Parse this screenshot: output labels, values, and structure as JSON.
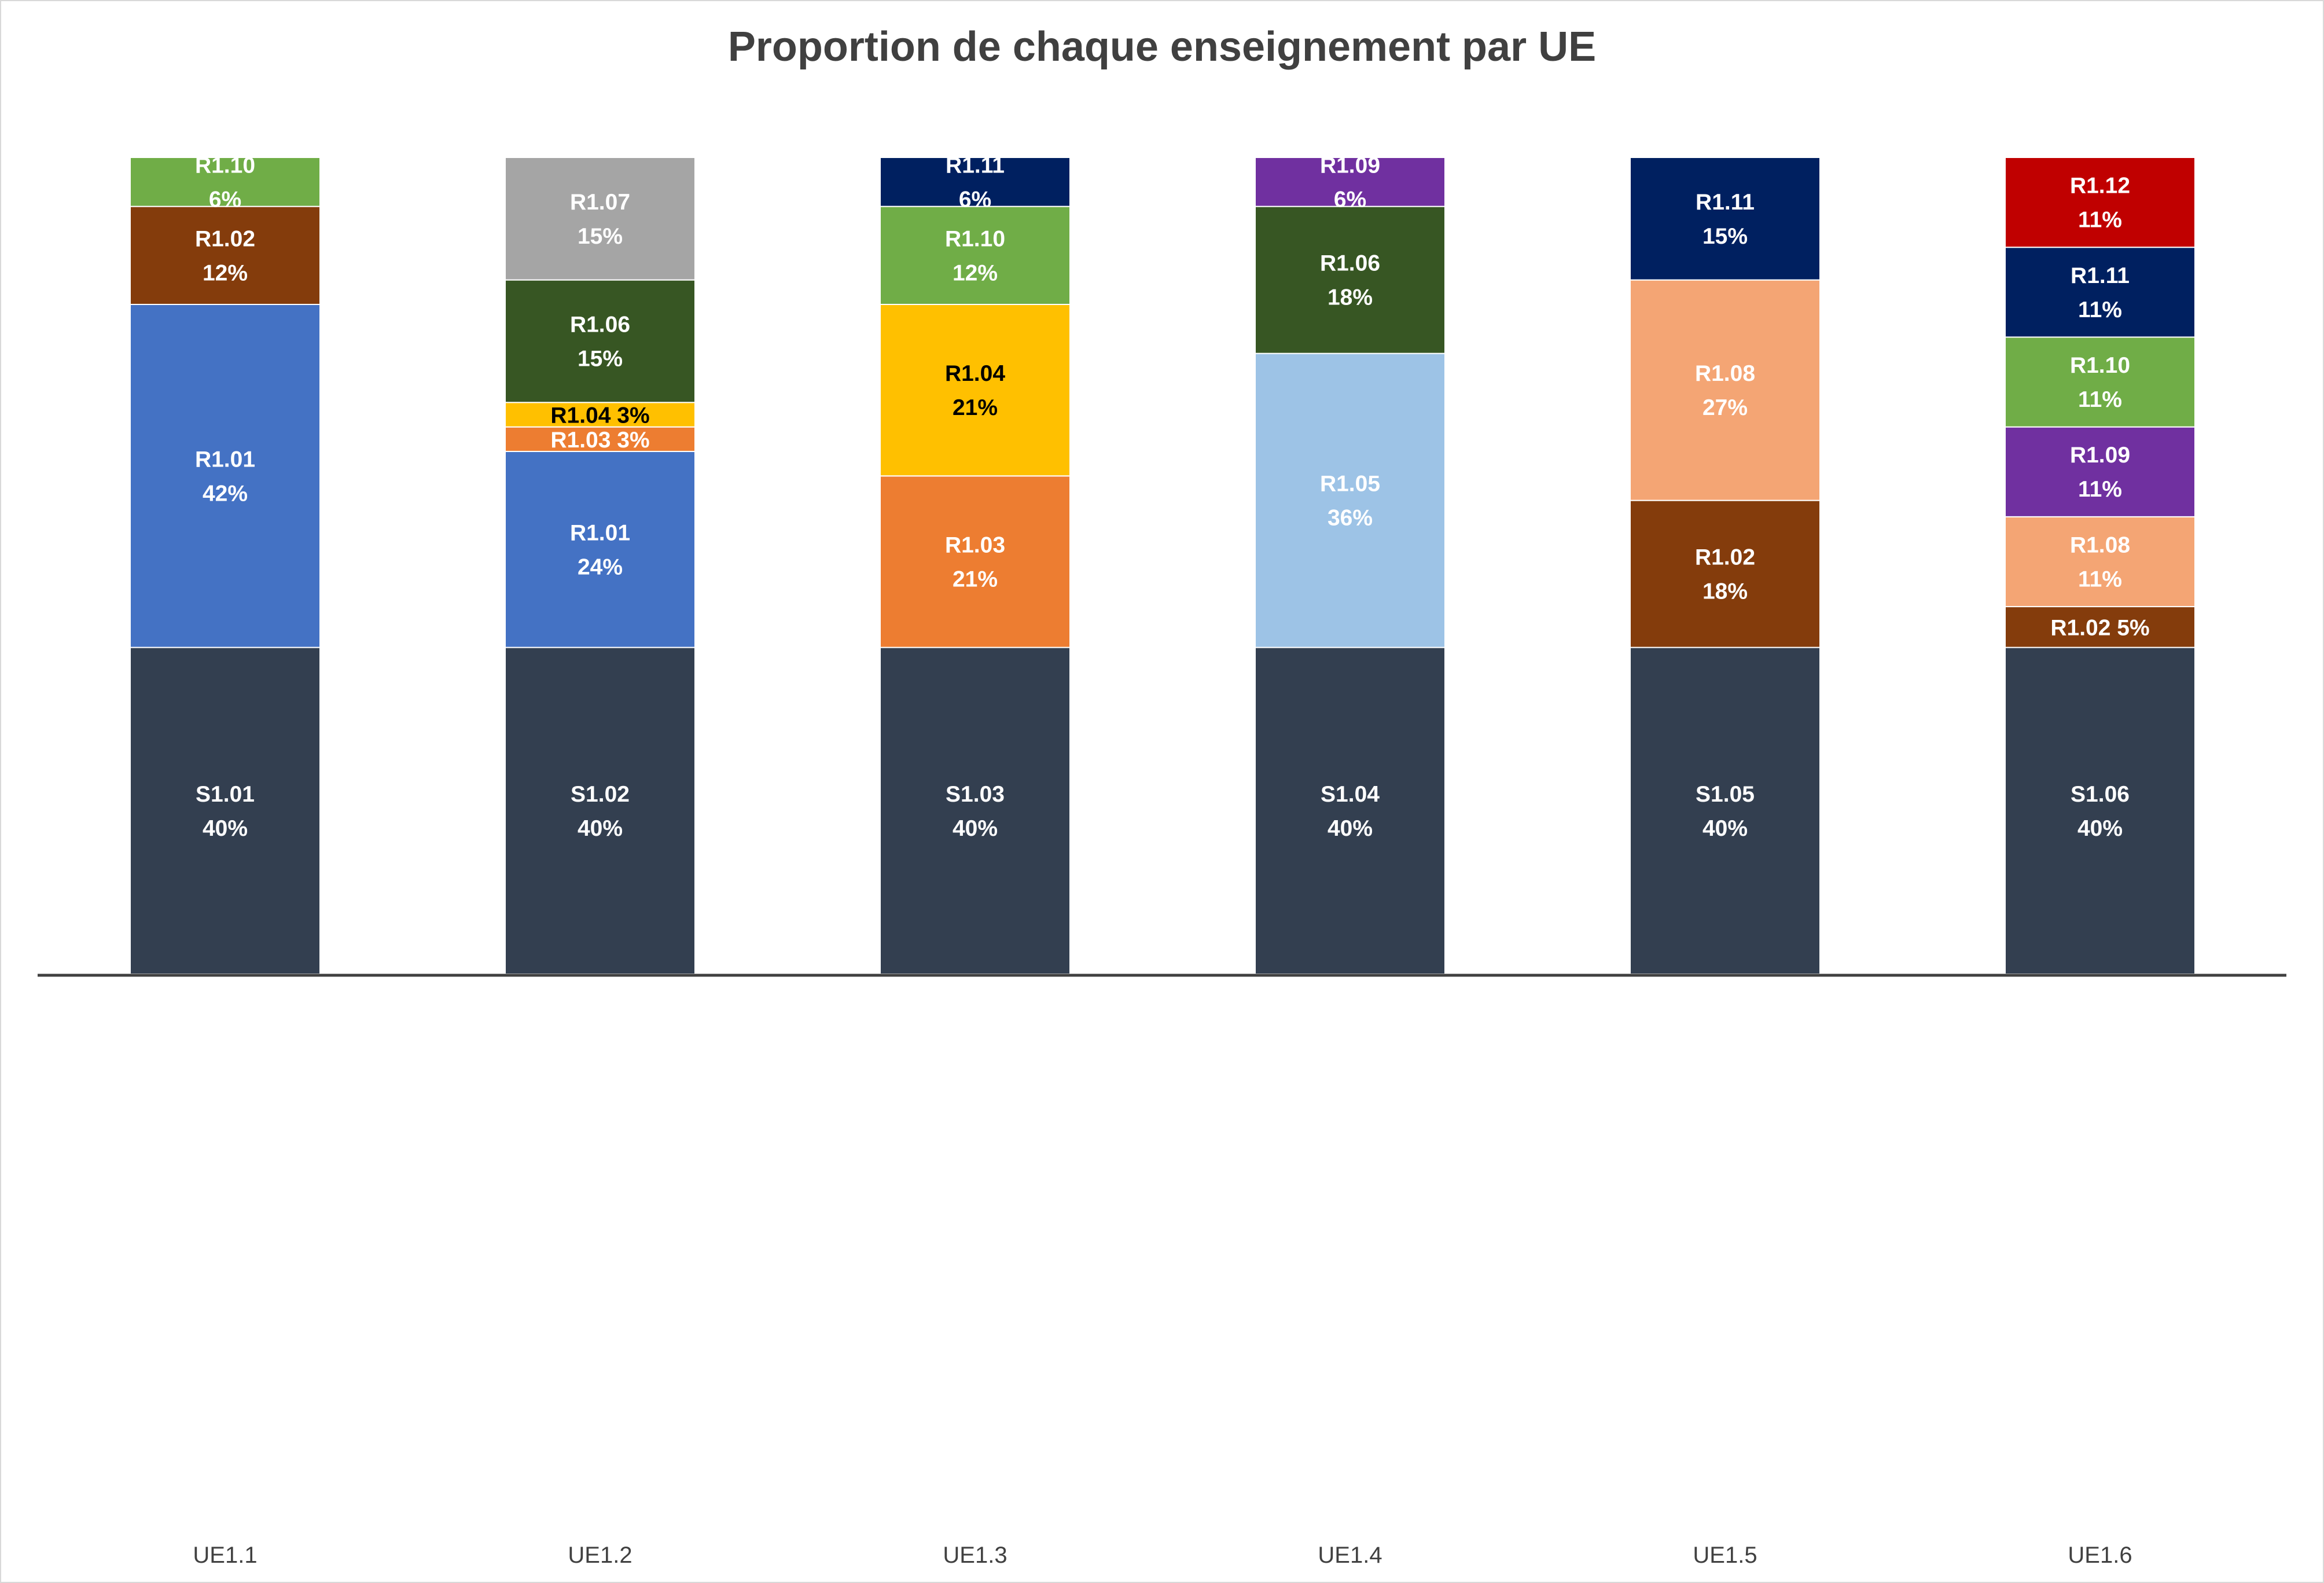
{
  "chart_data": {
    "type": "bar",
    "stacked": true,
    "percent": true,
    "title": "Proportion de chaque enseignement par UE",
    "xlabel": "",
    "ylabel": "",
    "ylim": [
      0,
      100
    ],
    "grid": false,
    "legend": "none",
    "categories": [
      "UE1.1",
      "UE1.2",
      "UE1.3",
      "UE1.4",
      "UE1.5",
      "UE1.6"
    ],
    "stacks": [
      {
        "category": "UE1.1",
        "segments": [
          {
            "name": "S1.01",
            "value": 40,
            "label": "40%",
            "color": "#333F50",
            "text_color": "#FFFFFF"
          },
          {
            "name": "R1.01",
            "value": 42,
            "label": "42%",
            "color": "#4472C4",
            "text_color": "#FFFFFF"
          },
          {
            "name": "R1.02",
            "value": 12,
            "label": "12%",
            "color": "#843C0C",
            "text_color": "#FFFFFF"
          },
          {
            "name": "R1.10",
            "value": 6,
            "label": "6%",
            "color": "#70AD47",
            "text_color": "#FFFFFF"
          }
        ]
      },
      {
        "category": "UE1.2",
        "segments": [
          {
            "name": "S1.02",
            "value": 40,
            "label": "40%",
            "color": "#333F50",
            "text_color": "#FFFFFF"
          },
          {
            "name": "R1.01",
            "value": 24,
            "label": "24%",
            "color": "#4472C4",
            "text_color": "#FFFFFF"
          },
          {
            "name": "R1.03",
            "value": 3,
            "label": "3%",
            "color": "#ED7D31",
            "text_color": "#FFFFFF",
            "inline": true
          },
          {
            "name": "R1.04",
            "value": 3,
            "label": "3%",
            "color": "#FFC000",
            "text_color": "#000000",
            "inline": true
          },
          {
            "name": "R1.06",
            "value": 15,
            "label": "15%",
            "color": "#375623",
            "text_color": "#FFFFFF"
          },
          {
            "name": "R1.07",
            "value": 15,
            "label": "15%",
            "color": "#A5A5A5",
            "text_color": "#FFFFFF"
          }
        ]
      },
      {
        "category": "UE1.3",
        "segments": [
          {
            "name": "S1.03",
            "value": 40,
            "label": "40%",
            "color": "#333F50",
            "text_color": "#FFFFFF"
          },
          {
            "name": "R1.03",
            "value": 21,
            "label": "21%",
            "color": "#ED7D31",
            "text_color": "#FFFFFF"
          },
          {
            "name": "R1.04",
            "value": 21,
            "label": "21%",
            "color": "#FFC000",
            "text_color": "#000000"
          },
          {
            "name": "R1.10",
            "value": 12,
            "label": "12%",
            "color": "#70AD47",
            "text_color": "#FFFFFF"
          },
          {
            "name": "R1.11",
            "value": 6,
            "label": "6%",
            "color": "#002060",
            "text_color": "#FFFFFF"
          }
        ]
      },
      {
        "category": "UE1.4",
        "segments": [
          {
            "name": "S1.04",
            "value": 40,
            "label": "40%",
            "color": "#333F50",
            "text_color": "#FFFFFF"
          },
          {
            "name": "R1.05",
            "value": 36,
            "label": "36%",
            "color": "#9DC3E6",
            "text_color": "#FFFFFF"
          },
          {
            "name": "R1.06",
            "value": 18,
            "label": "18%",
            "color": "#375623",
            "text_color": "#FFFFFF"
          },
          {
            "name": "R1.09",
            "value": 6,
            "label": "6%",
            "color": "#7030A0",
            "text_color": "#FFFFFF"
          }
        ]
      },
      {
        "category": "UE1.5",
        "segments": [
          {
            "name": "S1.05",
            "value": 40,
            "label": "40%",
            "color": "#333F50",
            "text_color": "#FFFFFF"
          },
          {
            "name": "R1.02",
            "value": 18,
            "label": "18%",
            "color": "#843C0C",
            "text_color": "#FFFFFF"
          },
          {
            "name": "R1.08",
            "value": 27,
            "label": "27%",
            "color": "#F4A574",
            "text_color": "#FFFFFF"
          },
          {
            "name": "R1.11",
            "value": 15,
            "label": "15%",
            "color": "#002060",
            "text_color": "#FFFFFF"
          }
        ]
      },
      {
        "category": "UE1.6",
        "segments": [
          {
            "name": "S1.06",
            "value": 40,
            "label": "40%",
            "color": "#333F50",
            "text_color": "#FFFFFF"
          },
          {
            "name": "R1.02",
            "value": 5,
            "label": "5%",
            "color": "#843C0C",
            "text_color": "#FFFFFF",
            "inline": true
          },
          {
            "name": "R1.08",
            "value": 11,
            "label": "11%",
            "color": "#F4A574",
            "text_color": "#FFFFFF"
          },
          {
            "name": "R1.09",
            "value": 11,
            "label": "11%",
            "color": "#7030A0",
            "text_color": "#FFFFFF"
          },
          {
            "name": "R1.10",
            "value": 11,
            "label": "11%",
            "color": "#70AD47",
            "text_color": "#FFFFFF"
          },
          {
            "name": "R1.11",
            "value": 11,
            "label": "11%",
            "color": "#002060",
            "text_color": "#FFFFFF"
          },
          {
            "name": "R1.12",
            "value": 11,
            "label": "11%",
            "color": "#C00000",
            "text_color": "#FFFFFF"
          }
        ]
      }
    ],
    "axis_color": "#404040"
  }
}
